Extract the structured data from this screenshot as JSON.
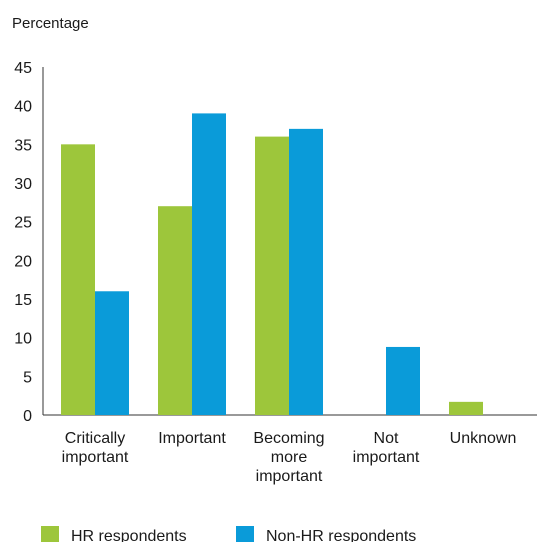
{
  "chart_data": {
    "type": "bar",
    "ylabel": "Percentage",
    "xlabel": "",
    "title": "",
    "ylim": [
      0,
      45
    ],
    "yticks": [
      0,
      5,
      10,
      15,
      20,
      25,
      30,
      35,
      40,
      45
    ],
    "grid": false,
    "legend_position": "bottom-left",
    "categories": [
      [
        "Critically",
        "important"
      ],
      [
        "Important"
      ],
      [
        "Becoming",
        "more",
        "important"
      ],
      [
        "Not",
        "important"
      ],
      [
        "Unknown"
      ]
    ],
    "series": [
      {
        "name": "HR respondents",
        "color": "#9dc63b",
        "values": [
          35,
          27,
          36,
          0,
          1.7
        ]
      },
      {
        "name": "Non-HR respondents",
        "color": "#0a9bd9",
        "values": [
          16,
          39,
          37,
          8.8,
          0
        ]
      }
    ]
  }
}
